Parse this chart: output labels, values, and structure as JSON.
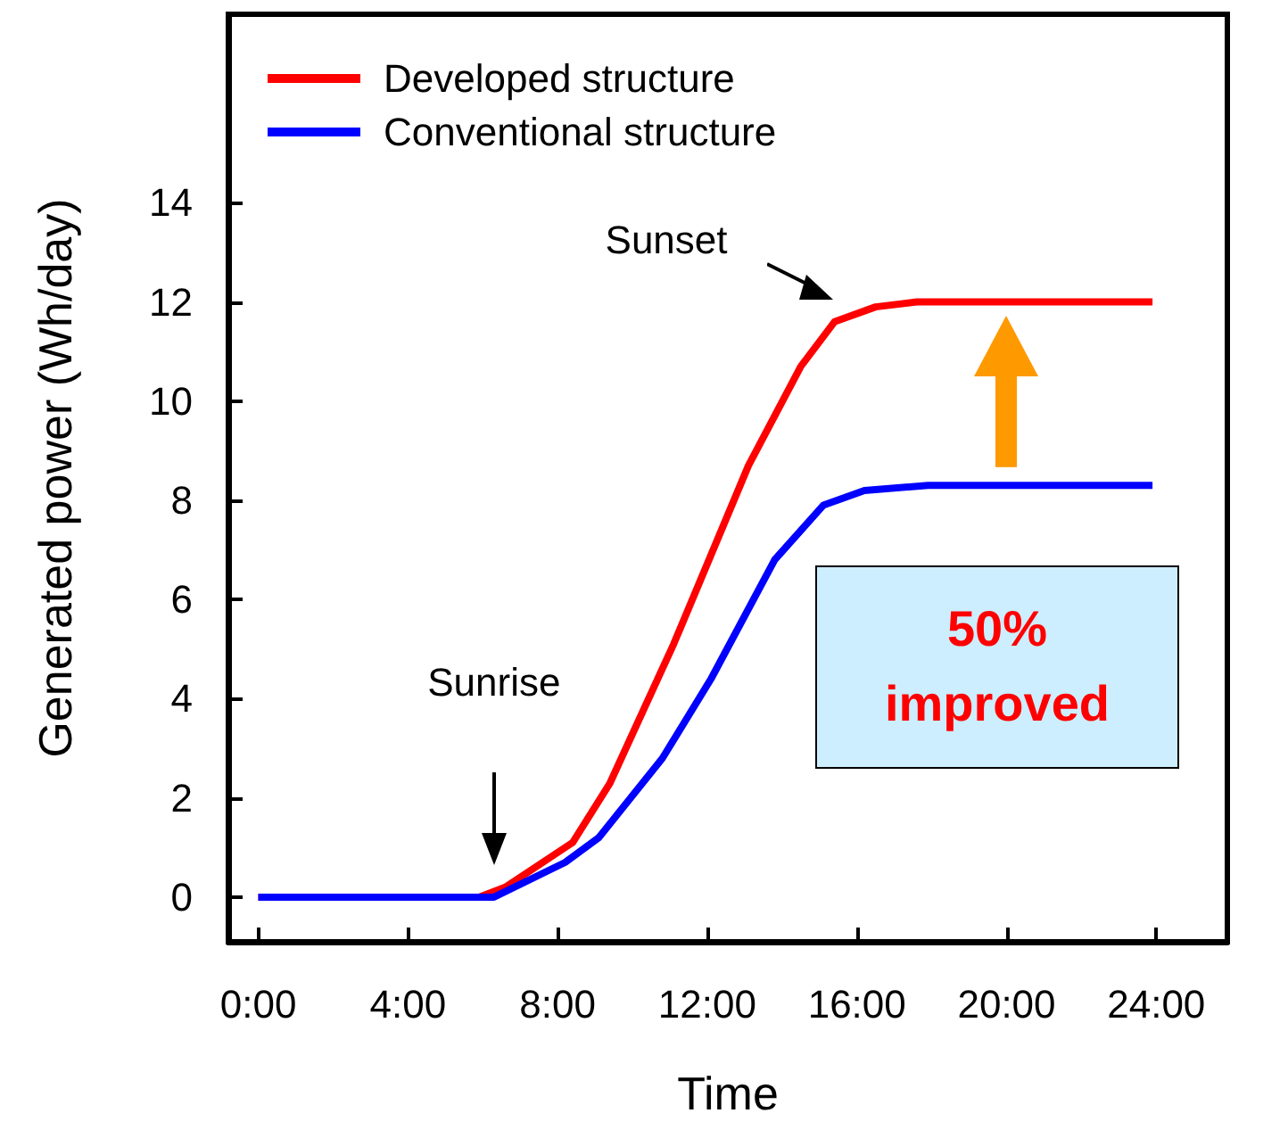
{
  "chart_data": {
    "type": "line",
    "xlabel": "Time",
    "ylabel": "Generated power (Wh/day)",
    "legend": "top left",
    "grid": false,
    "marker": "none",
    "line_style": "solid",
    "xlim": [
      -0.8,
      25.9
    ],
    "ylim": [
      -0.9,
      17.8
    ],
    "xticks": [
      {
        "value": 0,
        "label": "0:00"
      },
      {
        "value": 4,
        "label": "4:00"
      },
      {
        "value": 8,
        "label": "8:00"
      },
      {
        "value": 12,
        "label": "12:00"
      },
      {
        "value": 16,
        "label": "16:00"
      },
      {
        "value": 20,
        "label": "20:00"
      },
      {
        "value": 24,
        "label": "24:00"
      }
    ],
    "yticks": [
      0,
      2,
      4,
      6,
      8,
      10,
      12,
      14
    ],
    "series": [
      {
        "name": "Developed structure",
        "color": "#ff0000",
        "x": [
          0,
          5.9,
          6.6,
          8.4,
          9.4,
          11.1,
          13.1,
          14.5,
          15.4,
          16.5,
          17.6,
          23.9
        ],
        "values": [
          0,
          0,
          0.2,
          1.1,
          2.3,
          5.1,
          8.7,
          10.7,
          11.6,
          11.9,
          12.0,
          12.0
        ]
      },
      {
        "name": "Conventional structure",
        "color": "#0000ff",
        "x": [
          0,
          6.3,
          8.2,
          9.1,
          10.8,
          12.1,
          13.8,
          15.1,
          16.2,
          17.9,
          23.9
        ],
        "values": [
          0,
          0,
          0.7,
          1.2,
          2.8,
          4.4,
          6.8,
          7.9,
          8.2,
          8.3,
          8.3
        ]
      }
    ],
    "annotations": [
      "Sunrise",
      "Sunset",
      "50%\nimproved"
    ]
  }
}
